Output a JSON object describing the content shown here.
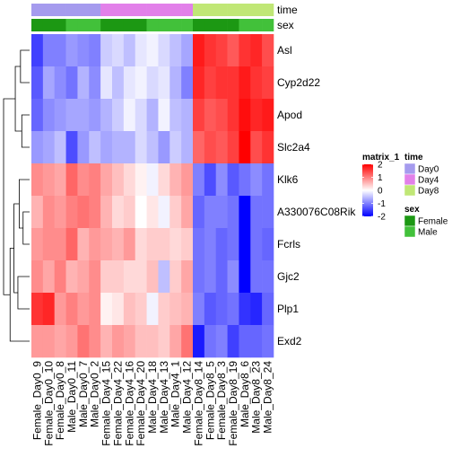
{
  "chart_data": {
    "type": "heatmap",
    "rows": [
      "Asl",
      "Cyp2d22",
      "Apod",
      "Slc2a4",
      "Klk6",
      "A330076C08Rik",
      "Fcrls",
      "Gjc2",
      "Plp1",
      "Exd2"
    ],
    "columns": [
      "Female_Day0_9",
      "Female_Day0_10",
      "Female_Day0_8",
      "Male_Day0_11",
      "Male_Day0_7",
      "Male_Day0_2",
      "Female_Day4_15",
      "Female_Day4_22",
      "Female_Day4_16",
      "Female_Day4_20",
      "Male_Day4_18",
      "Male_Day4_13",
      "Male_Day4_1",
      "Male_Day4_12",
      "Female_Day8_14",
      "Female_Day8_5",
      "Female_Day8_3",
      "Female_Day8_19",
      "Male_Day8_6",
      "Male_Day8_23",
      "Male_Day8_24"
    ],
    "values": [
      [
        -1.5,
        -1.0,
        -1.0,
        -0.8,
        -0.9,
        -1.0,
        -0.4,
        -0.3,
        -0.5,
        -0.2,
        -0.1,
        -0.3,
        -0.5,
        -0.7,
        1.8,
        1.6,
        1.5,
        1.3,
        1.6,
        1.7,
        1.4
      ],
      [
        -1.3,
        -0.7,
        -0.9,
        -1.1,
        -0.6,
        -0.9,
        -0.2,
        -0.5,
        -0.2,
        -0.1,
        -0.3,
        -0.2,
        -0.6,
        -1.0,
        1.7,
        1.5,
        1.6,
        1.6,
        1.8,
        1.6,
        1.5
      ],
      [
        -1.2,
        -0.9,
        -0.8,
        -0.7,
        -0.7,
        -0.8,
        -0.6,
        -0.4,
        -0.1,
        -0.3,
        -0.6,
        -0.1,
        -0.5,
        -0.6,
        1.5,
        1.3,
        1.4,
        1.6,
        1.9,
        1.7,
        1.8
      ],
      [
        -0.8,
        -0.7,
        -0.5,
        -1.4,
        -0.8,
        -0.5,
        -0.7,
        -0.6,
        -0.6,
        -0.3,
        -0.5,
        -0.8,
        -0.4,
        -0.6,
        1.2,
        1.4,
        1.3,
        1.5,
        2.2,
        1.4,
        1.6
      ],
      [
        0.9,
        0.8,
        0.7,
        1.2,
        0.9,
        1.0,
        0.7,
        0.5,
        0.3,
        0.1,
        -0.1,
        0.3,
        0.6,
        0.8,
        -1.0,
        -1.4,
        -0.9,
        -1.3,
        -1.1,
        -0.9,
        -1.1
      ],
      [
        0.6,
        0.9,
        0.8,
        1.0,
        1.1,
        1.0,
        0.6,
        0.3,
        0.4,
        0.0,
        0.2,
        -0.1,
        0.4,
        0.7,
        -1.2,
        -1.0,
        -1.0,
        -1.1,
        -2.2,
        -1.1,
        -1.1
      ],
      [
        0.8,
        0.9,
        0.9,
        1.2,
        0.6,
        0.8,
        0.7,
        0.6,
        0.8,
        0.3,
        0.4,
        0.4,
        0.3,
        0.4,
        -1.1,
        -1.0,
        -1.2,
        -1.1,
        -2.0,
        -1.1,
        -1.2
      ],
      [
        0.9,
        0.7,
        1.0,
        0.6,
        0.7,
        0.9,
        0.4,
        0.4,
        0.3,
        0.3,
        0.5,
        -0.5,
        0.4,
        0.7,
        -1.1,
        -1.0,
        -1.2,
        -0.9,
        -2.1,
        -1.1,
        -1.1
      ],
      [
        1.6,
        1.7,
        0.8,
        1.0,
        0.8,
        0.9,
        0.1,
        0.2,
        0.5,
        0.4,
        -0.1,
        0.4,
        0.5,
        0.6,
        -1.0,
        -1.3,
        -1.2,
        -1.1,
        -1.6,
        -1.7,
        -1.2
      ],
      [
        0.8,
        0.8,
        0.7,
        0.8,
        1.1,
        0.9,
        0.6,
        0.8,
        0.7,
        0.5,
        0.5,
        0.4,
        0.7,
        1.1,
        -1.8,
        -1.1,
        -1.0,
        -1.5,
        -1.2,
        -1.2,
        -1.1
      ]
    ],
    "annotations": {
      "time": {
        "label": "time",
        "values": [
          "Day0",
          "Day0",
          "Day0",
          "Day0",
          "Day0",
          "Day0",
          "Day4",
          "Day4",
          "Day4",
          "Day4",
          "Day4",
          "Day4",
          "Day4",
          "Day4",
          "Day8",
          "Day8",
          "Day8",
          "Day8",
          "Day8",
          "Day8",
          "Day8"
        ],
        "legend": [
          {
            "name": "Day0",
            "color": "#a59bee"
          },
          {
            "name": "Day4",
            "color": "#e280e9"
          },
          {
            "name": "Day8",
            "color": "#c0e776"
          }
        ]
      },
      "sex": {
        "label": "sex",
        "values": [
          "Female",
          "Female",
          "Female",
          "Male",
          "Male",
          "Male",
          "Female",
          "Female",
          "Female",
          "Female",
          "Male",
          "Male",
          "Male",
          "Male",
          "Female",
          "Female",
          "Female",
          "Female",
          "Male",
          "Male",
          "Male"
        ],
        "legend": [
          {
            "name": "Female",
            "color": "#1c9813"
          },
          {
            "name": "Male",
            "color": "#42c13a"
          }
        ]
      }
    },
    "color_scale": {
      "title": "matrix_1",
      "ticks": [
        2,
        1,
        0,
        -1,
        -2
      ],
      "range": [
        -2,
        2
      ],
      "low_color": "#0000ff",
      "mid_color": "#ffffff",
      "high_color": "#ff0000"
    },
    "row_dendrogram": {
      "merges": [
        [
          0,
          1,
          0.35
        ],
        [
          2,
          3,
          0.3
        ],
        [
          10,
          11,
          0.55
        ],
        [
          5,
          6,
          0.25
        ],
        [
          4,
          13,
          0.4
        ],
        [
          7,
          8,
          0.45
        ],
        [
          14,
          15,
          0.6
        ],
        [
          16,
          9,
          0.75
        ],
        [
          12,
          17,
          1.0
        ]
      ]
    },
    "grid": false,
    "legend_position": "right"
  }
}
